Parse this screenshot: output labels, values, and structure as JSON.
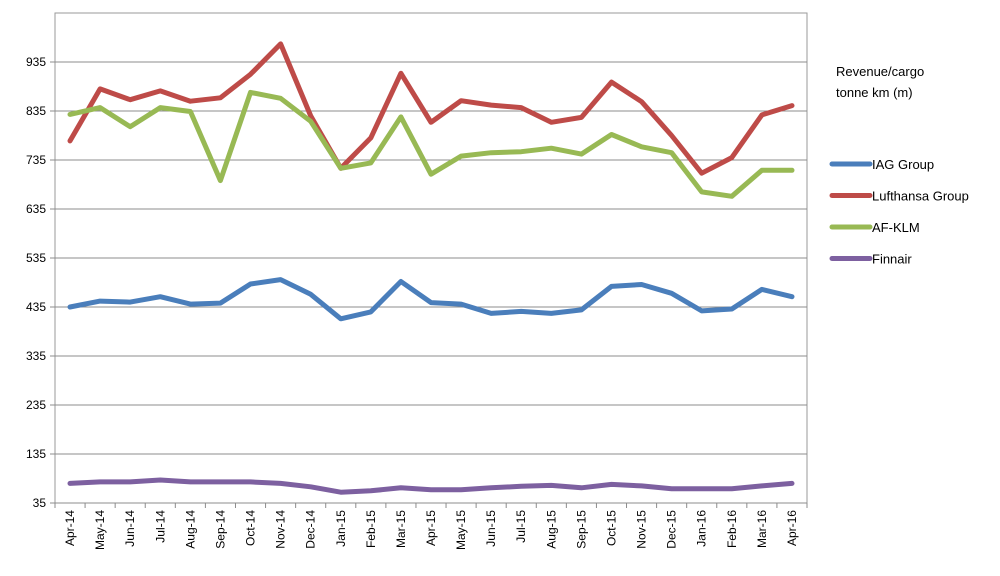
{
  "chart_data": {
    "type": "line",
    "title": "",
    "xlabel": "",
    "ylabel": "Revenue/cargo tonne km (m)",
    "ylabel_lines": [
      "Revenue/cargo",
      "tonne km (m)"
    ],
    "ylim": [
      35,
      1035
    ],
    "yticks": [
      35,
      135,
      235,
      335,
      435,
      535,
      635,
      735,
      835,
      935
    ],
    "grid": true,
    "legend_position": "right",
    "categories": [
      "Apr-14",
      "May-14",
      "Jun-14",
      "Jul-14",
      "Aug-14",
      "Sep-14",
      "Oct-14",
      "Nov-14",
      "Dec-14",
      "Jan-15",
      "Feb-15",
      "Mar-15",
      "Apr-15",
      "May-15",
      "Jun-15",
      "Jul-15",
      "Aug-15",
      "Sep-15",
      "Oct-15",
      "Nov-15",
      "Dec-15",
      "Jan-16",
      "Feb-16",
      "Mar-16",
      "Apr-16"
    ],
    "series": [
      {
        "name": "IAG Group",
        "color": "#4a7ebb",
        "values": [
          435,
          447,
          445,
          456,
          441,
          443,
          482,
          491,
          461,
          411,
          425,
          487,
          444,
          441,
          422,
          426,
          422,
          429,
          477,
          481,
          463,
          427,
          431,
          471,
          456
        ]
      },
      {
        "name": "Lufthansa Group",
        "color": "#be4b48",
        "values": [
          774,
          880,
          858,
          876,
          855,
          862,
          910,
          972,
          825,
          718,
          780,
          912,
          812,
          856,
          847,
          842,
          812,
          822,
          894,
          854,
          785,
          708,
          740,
          827,
          846
        ]
      },
      {
        "name": "AF-KLM",
        "color": "#98b954",
        "values": [
          828,
          842,
          803,
          842,
          834,
          693,
          873,
          861,
          814,
          718,
          729,
          823,
          706,
          743,
          750,
          752,
          759,
          747,
          787,
          762,
          750,
          670,
          661,
          714,
          714
        ]
      },
      {
        "name": "Finnair",
        "color": "#7d60a0",
        "values": [
          75,
          78,
          78,
          82,
          78,
          78,
          78,
          75,
          68,
          57,
          60,
          66,
          62,
          62,
          66,
          69,
          71,
          66,
          73,
          70,
          64,
          64,
          64,
          70,
          75
        ]
      }
    ]
  }
}
